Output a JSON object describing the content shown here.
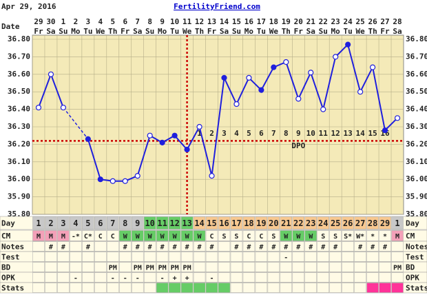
{
  "header": {
    "date": "Apr 29, 2016",
    "site": "FertilityFriend.com"
  },
  "chart_data": {
    "type": "line",
    "date_label": "Date",
    "categories": [
      "29",
      "30",
      "1",
      "2",
      "3",
      "4",
      "5",
      "6",
      "7",
      "8",
      "9",
      "10",
      "11",
      "12",
      "13",
      "14",
      "15",
      "16",
      "17",
      "18",
      "19",
      "20",
      "21",
      "22",
      "23",
      "24",
      "25",
      "26",
      "27",
      "28"
    ],
    "weekdays": [
      "Fr",
      "Sa",
      "Su",
      "Mo",
      "Tu",
      "We",
      "Th",
      "Fr",
      "Sa",
      "Su",
      "Mo",
      "Tu",
      "We",
      "Th",
      "Fr",
      "Sa",
      "Su",
      "Mo",
      "Tu",
      "We",
      "Th",
      "Fr",
      "Sa",
      "Su",
      "Mo",
      "Tu",
      "We",
      "Th",
      "Fr",
      "Sa"
    ],
    "values": [
      36.41,
      36.6,
      36.41,
      null,
      36.23,
      36.0,
      35.99,
      35.99,
      36.02,
      36.25,
      36.21,
      36.25,
      36.17,
      36.3,
      36.02,
      36.58,
      36.43,
      36.58,
      36.51,
      36.64,
      36.67,
      36.46,
      36.61,
      36.4,
      36.7,
      36.77,
      36.5,
      36.64,
      36.28,
      36.35
    ],
    "markers_filled": [
      false,
      false,
      false,
      false,
      true,
      true,
      false,
      false,
      false,
      false,
      true,
      true,
      true,
      false,
      false,
      true,
      false,
      false,
      true,
      true,
      false,
      false,
      false,
      false,
      false,
      true,
      false,
      false,
      true,
      false
    ],
    "color": "#1f1fdd",
    "ylim": [
      35.8,
      36.8
    ],
    "yticks": [
      {
        "value": 35.8,
        "label": "35.80"
      },
      {
        "value": 35.9,
        "label": "35.90"
      },
      {
        "value": 36.0,
        "label": "36.00"
      },
      {
        "value": 36.1,
        "label": "36.10"
      },
      {
        "value": 36.2,
        "label": "36.20"
      },
      {
        "value": 36.3,
        "label": "36.30"
      },
      {
        "value": 36.4,
        "label": "36.40"
      },
      {
        "value": 36.5,
        "label": "36.50"
      },
      {
        "value": 36.6,
        "label": "36.60"
      },
      {
        "value": 36.7,
        "label": "36.70"
      },
      {
        "value": 36.8,
        "label": "36.80"
      }
    ],
    "grid": true,
    "coverline": 36.22,
    "ovulation_date": "11",
    "dpo": [
      null,
      null,
      null,
      null,
      null,
      null,
      null,
      null,
      null,
      null,
      null,
      null,
      null,
      1,
      2,
      3,
      4,
      5,
      6,
      7,
      8,
      9,
      10,
      11,
      12,
      13,
      14,
      15,
      16,
      null
    ],
    "dpo_label": "DPO"
  },
  "rows": {
    "labels": [
      "Day",
      "CM",
      "Notes",
      "Test",
      "BD",
      "OPK",
      "Stats"
    ],
    "day": [
      1,
      2,
      3,
      4,
      5,
      6,
      7,
      8,
      9,
      10,
      11,
      12,
      13,
      14,
      15,
      16,
      17,
      18,
      19,
      20,
      21,
      22,
      23,
      24,
      25,
      26,
      27,
      28,
      29,
      1
    ],
    "day_colors": [
      "#c8c8c8",
      "#c8c8c8",
      "#c8c8c8",
      "#c8c8c8",
      "#c8c8c8",
      "#c8c8c8",
      "#c8c8c8",
      "#c8c8c8",
      "#c8c8c8",
      "#6c6",
      "#6c6",
      "#6c6",
      "#6c6",
      "#f8c890",
      "#f8c890",
      "#f8c890",
      "#f8c890",
      "#f8c890",
      "#f8c890",
      "#f8c890",
      "#f8c890",
      "#f8c890",
      "#f8c890",
      "#f8c890",
      "#f8c890",
      "#f8c890",
      "#f8c890",
      "#f8c890",
      "#f8c890",
      "#c8c8c8"
    ],
    "cm": [
      "M",
      "M",
      "M",
      "-*",
      "C*",
      "C",
      "C",
      "W",
      "W",
      "W",
      "W",
      "W",
      "W",
      "W",
      "C",
      "S",
      "S",
      "C",
      "C",
      "S",
      "W",
      "W",
      "W",
      "S",
      "S",
      "S*",
      "W*",
      "*",
      "*",
      "M"
    ],
    "notes": [
      null,
      "#",
      "#",
      null,
      "#",
      null,
      null,
      "#",
      "#",
      "#",
      "#",
      "#",
      "#",
      "#",
      "#",
      null,
      "#",
      "#",
      "#",
      "#",
      "#",
      "#",
      "#",
      "#",
      "#",
      null,
      "#",
      "#",
      "#",
      null
    ],
    "test": [
      null,
      null,
      null,
      null,
      null,
      null,
      null,
      null,
      null,
      null,
      null,
      null,
      null,
      null,
      null,
      null,
      null,
      null,
      null,
      null,
      "-",
      null,
      null,
      null,
      null,
      null,
      null,
      null,
      null,
      null
    ],
    "bd": [
      null,
      null,
      null,
      null,
      null,
      null,
      "PM",
      null,
      "PM",
      "PM",
      "PM",
      "PM",
      "PM",
      null,
      null,
      null,
      null,
      null,
      null,
      null,
      null,
      null,
      null,
      null,
      null,
      null,
      null,
      null,
      null,
      "PM"
    ],
    "opk": [
      null,
      null,
      null,
      "-",
      null,
      null,
      "-",
      "-",
      "-",
      null,
      "-",
      "+",
      "+",
      null,
      "-",
      null,
      null,
      null,
      null,
      null,
      null,
      null,
      null,
      null,
      null,
      null,
      null,
      null,
      null,
      null
    ],
    "stats_colors": [
      null,
      null,
      null,
      null,
      null,
      null,
      null,
      null,
      null,
      null,
      "#6c6",
      "#6c6",
      "#6c6",
      "#6c6",
      "#6c6",
      "#6c6",
      null,
      null,
      null,
      null,
      null,
      null,
      null,
      null,
      null,
      null,
      null,
      "#f39",
      "#f39",
      "#f39"
    ]
  }
}
